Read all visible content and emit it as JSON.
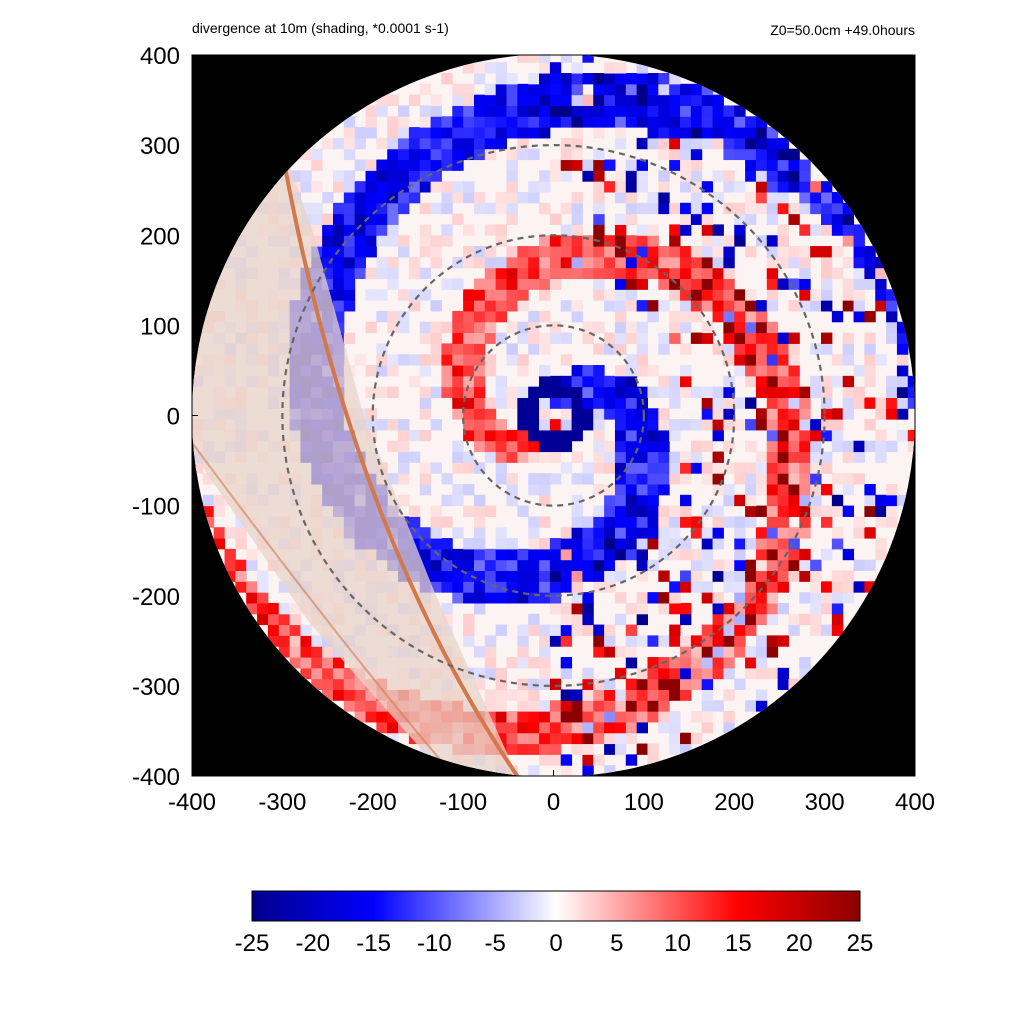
{
  "header": {
    "left_title": "divergence at 10m (shading, *0.0001 s-1)",
    "right_title": "Z0=50.0cm  +49.0hours"
  },
  "colors": {
    "background": "#000000",
    "zero": "#ffffff",
    "negative_max": "#00008b",
    "negative_mid": "#0000ff",
    "positive_mid": "#ff0000",
    "positive_max": "#8b0000",
    "range_ring": "#666666",
    "boundary_line": "#d2784b",
    "band_shading": "#e8d4c8"
  },
  "chart_data": {
    "type": "heatmap",
    "title": "divergence at 10m (shading, *0.0001 s-1)",
    "xlim": [
      -400,
      400
    ],
    "ylim": [
      -400,
      400
    ],
    "x_ticks": [
      "-400",
      "-300",
      "-200",
      "-100",
      "0",
      "100",
      "200",
      "300",
      "400"
    ],
    "y_ticks": [
      "400",
      "300",
      "200",
      "100",
      "0",
      "-100",
      "-200",
      "-300",
      "-400"
    ],
    "domain_radius": 400,
    "range_rings": [
      100,
      200,
      300
    ],
    "eye_ring_radius": 30,
    "colorbar": {
      "min": -25,
      "max": 25,
      "ticks": [
        "-25",
        "-20",
        "-15",
        "-10",
        "-5",
        "0",
        "5",
        "10",
        "15",
        "20",
        "25"
      ]
    }
  }
}
